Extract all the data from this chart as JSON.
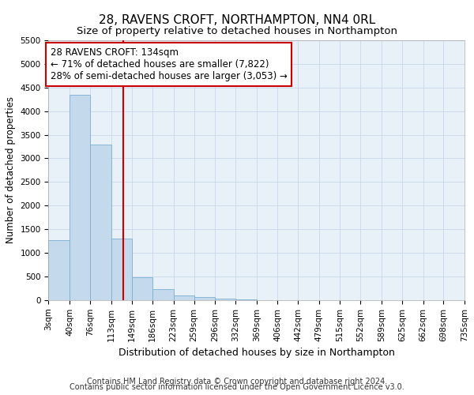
{
  "title": "28, RAVENS CROFT, NORTHAMPTON, NN4 0RL",
  "subtitle": "Size of property relative to detached houses in Northampton",
  "xlabel": "Distribution of detached houses by size in Northampton",
  "ylabel": "Number of detached properties",
  "bin_edges": [
    3,
    40,
    76,
    113,
    149,
    186,
    223,
    259,
    296,
    332,
    369,
    406,
    442,
    479,
    515,
    552,
    589,
    625,
    662,
    698,
    735
  ],
  "bar_heights": [
    1270,
    4350,
    3300,
    1300,
    480,
    230,
    90,
    60,
    25,
    8,
    4,
    2,
    1,
    0,
    0,
    0,
    0,
    0,
    0,
    0
  ],
  "bar_color": "#c5d9ed",
  "bar_edge_color": "#7aafd4",
  "vline_x": 134,
  "vline_color": "#cc0000",
  "annotation_text": "28 RAVENS CROFT: 134sqm\n← 71% of detached houses are smaller (7,822)\n28% of semi-detached houses are larger (3,053) →",
  "annotation_box_color": "#ffffff",
  "annotation_box_edge": "#cc0000",
  "ylim": [
    0,
    5500
  ],
  "yticks": [
    0,
    500,
    1000,
    1500,
    2000,
    2500,
    3000,
    3500,
    4000,
    4500,
    5000,
    5500
  ],
  "grid_color": "#c8d8ec",
  "bg_color": "#e8f0f8",
  "footer1": "Contains HM Land Registry data © Crown copyright and database right 2024.",
  "footer2": "Contains public sector information licensed under the Open Government Licence v3.0.",
  "title_fontsize": 11,
  "subtitle_fontsize": 9.5,
  "tick_label_fontsize": 7.5,
  "ylabel_fontsize": 8.5,
  "xlabel_fontsize": 9,
  "footer_fontsize": 7,
  "annot_fontsize": 8.5
}
